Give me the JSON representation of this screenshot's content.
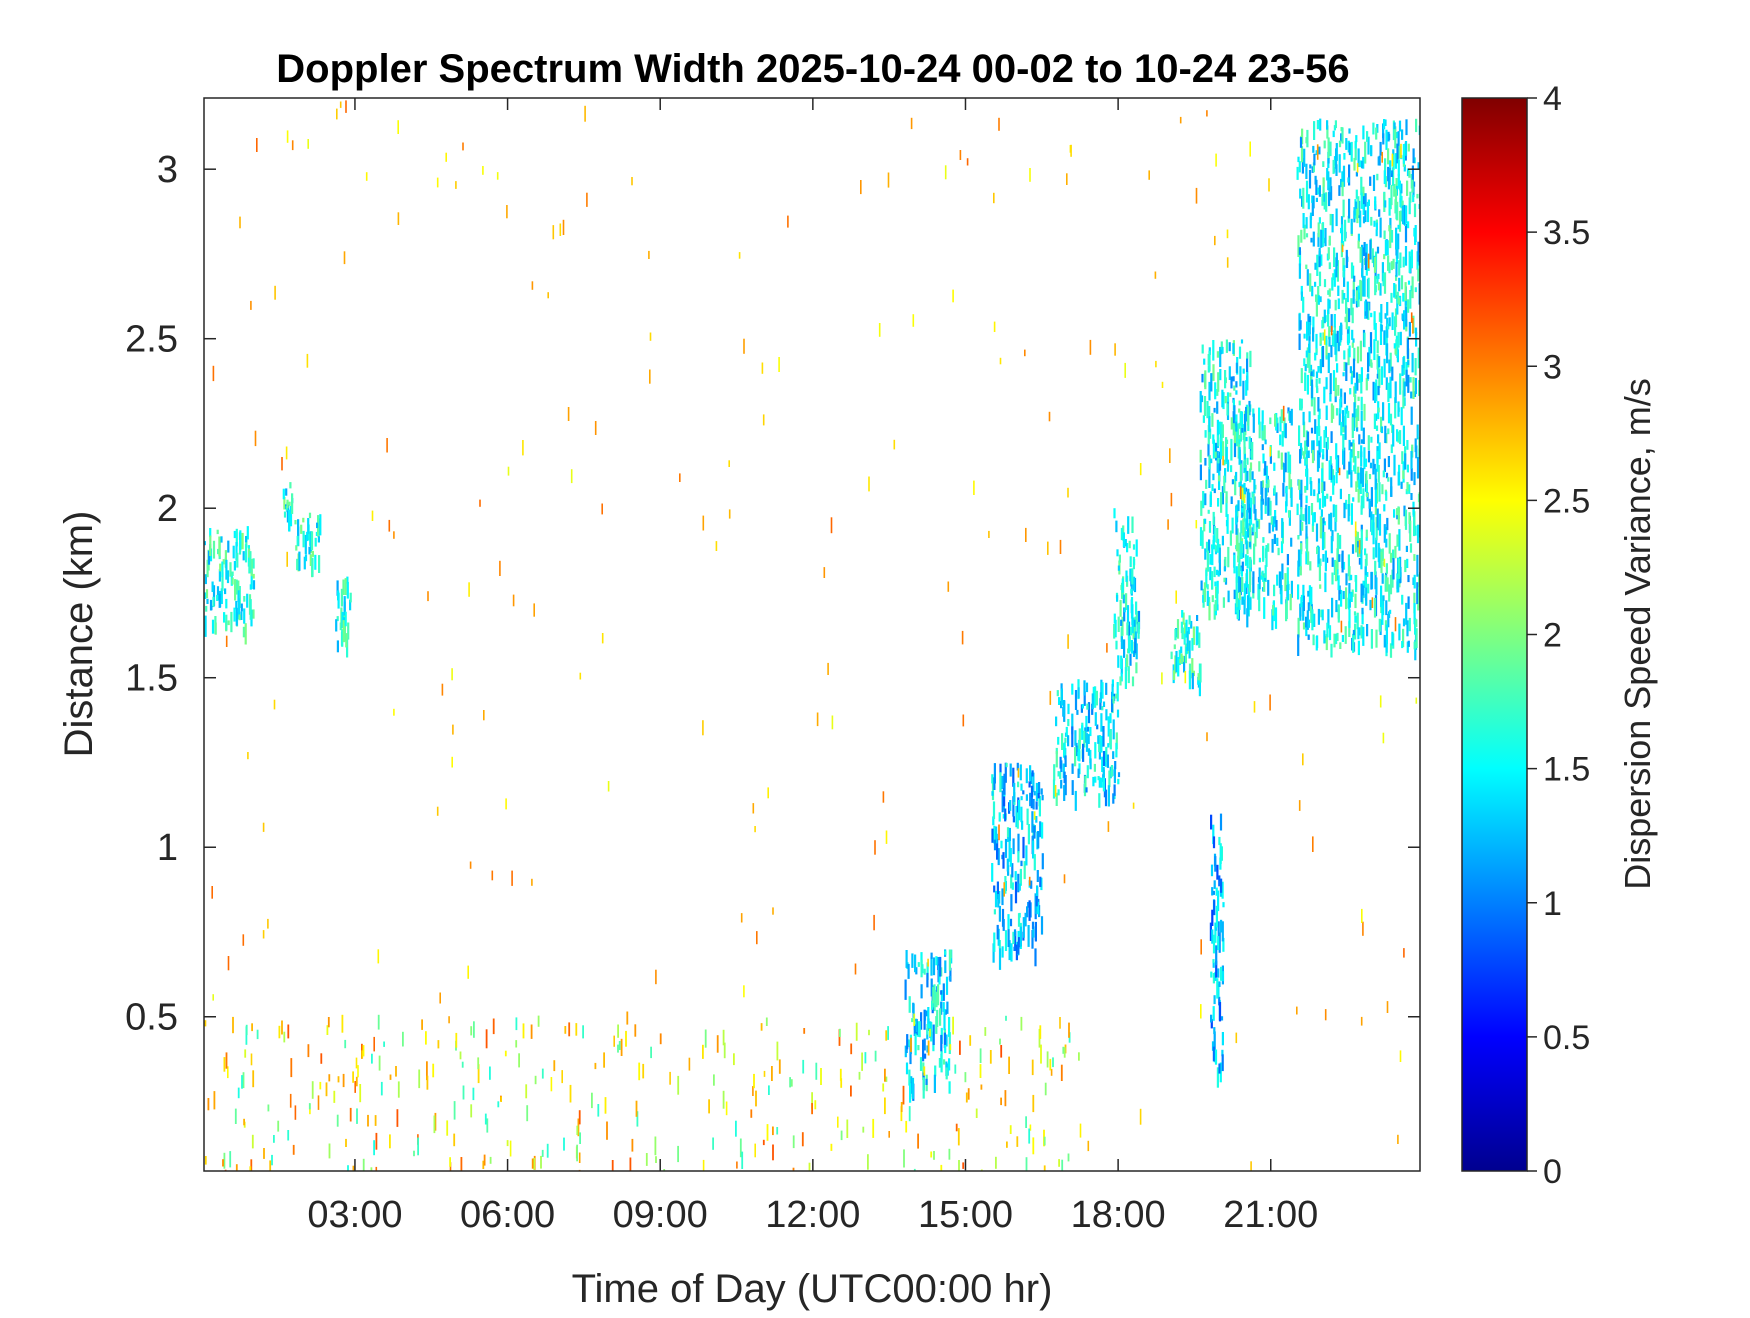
{
  "chart_data": {
    "type": "heatmap",
    "title": "Doppler Spectrum Width 2025-10-24 00-02 to 10-24 23-56",
    "xlabel": "Time of Day (UTC00:00 hr)",
    "ylabel": "Distance (km)",
    "colorbar_label": "Dispersion Speed Variance, m/s",
    "colormap": "jet",
    "xlim": [
      0.0333,
      23.9333
    ],
    "ylim": [
      0.045,
      3.21
    ],
    "clim": [
      0,
      4
    ],
    "x_ticks": [
      {
        "value": 3,
        "label": "03:00"
      },
      {
        "value": 6,
        "label": "06:00"
      },
      {
        "value": 9,
        "label": "09:00"
      },
      {
        "value": 12,
        "label": "12:00"
      },
      {
        "value": 15,
        "label": "15:00"
      },
      {
        "value": 18,
        "label": "18:00"
      },
      {
        "value": 21,
        "label": "21:00"
      }
    ],
    "y_ticks": [
      {
        "value": 0.5,
        "label": "0.5"
      },
      {
        "value": 1,
        "label": "1"
      },
      {
        "value": 1.5,
        "label": "1.5"
      },
      {
        "value": 2,
        "label": "2"
      },
      {
        "value": 2.5,
        "label": "2.5"
      },
      {
        "value": 3,
        "label": "3"
      }
    ],
    "colorbar_ticks": [
      {
        "value": 0,
        "label": "0"
      },
      {
        "value": 0.5,
        "label": "0.5"
      },
      {
        "value": 1,
        "label": "1"
      },
      {
        "value": 1.5,
        "label": "1.5"
      },
      {
        "value": 2,
        "label": "2"
      },
      {
        "value": 2.5,
        "label": "2.5"
      },
      {
        "value": 3,
        "label": "3"
      },
      {
        "value": 3.5,
        "label": "3.5"
      },
      {
        "value": 4,
        "label": "4"
      }
    ],
    "grid": false,
    "regions": [
      {
        "x": [
          0.03,
          1.0
        ],
        "y": [
          1.65,
          1.95
        ],
        "value": 1.6
      },
      {
        "x": [
          1.55,
          1.75
        ],
        "y": [
          1.98,
          2.08
        ],
        "value": 1.6
      },
      {
        "x": [
          1.8,
          2.3
        ],
        "y": [
          1.85,
          2.0
        ],
        "value": 1.6
      },
      {
        "x": [
          2.6,
          2.9
        ],
        "y": [
          1.6,
          1.8
        ],
        "value": 1.6
      },
      {
        "x": [
          13.8,
          14.7
        ],
        "y": [
          0.3,
          0.7
        ],
        "value": 1.4
      },
      {
        "x": [
          15.5,
          16.5
        ],
        "y": [
          0.7,
          1.25
        ],
        "value": 1.3
      },
      {
        "x": [
          16.7,
          18.0
        ],
        "y": [
          1.15,
          1.5
        ],
        "value": 1.4
      },
      {
        "x": [
          17.9,
          18.4
        ],
        "y": [
          1.5,
          2.0
        ],
        "value": 1.5
      },
      {
        "x": [
          19.0,
          19.6
        ],
        "y": [
          1.5,
          1.7
        ],
        "value": 1.6
      },
      {
        "x": [
          19.8,
          20.05
        ],
        "y": [
          0.35,
          1.1
        ],
        "value": 1.2
      },
      {
        "x": [
          19.6,
          20.6
        ],
        "y": [
          1.7,
          2.5
        ],
        "value": 1.5
      },
      {
        "x": [
          20.3,
          21.4
        ],
        "y": [
          1.7,
          2.3
        ],
        "value": 1.5
      },
      {
        "x": [
          21.5,
          23.93
        ],
        "y": [
          1.6,
          3.15
        ],
        "value": 1.5
      }
    ]
  }
}
